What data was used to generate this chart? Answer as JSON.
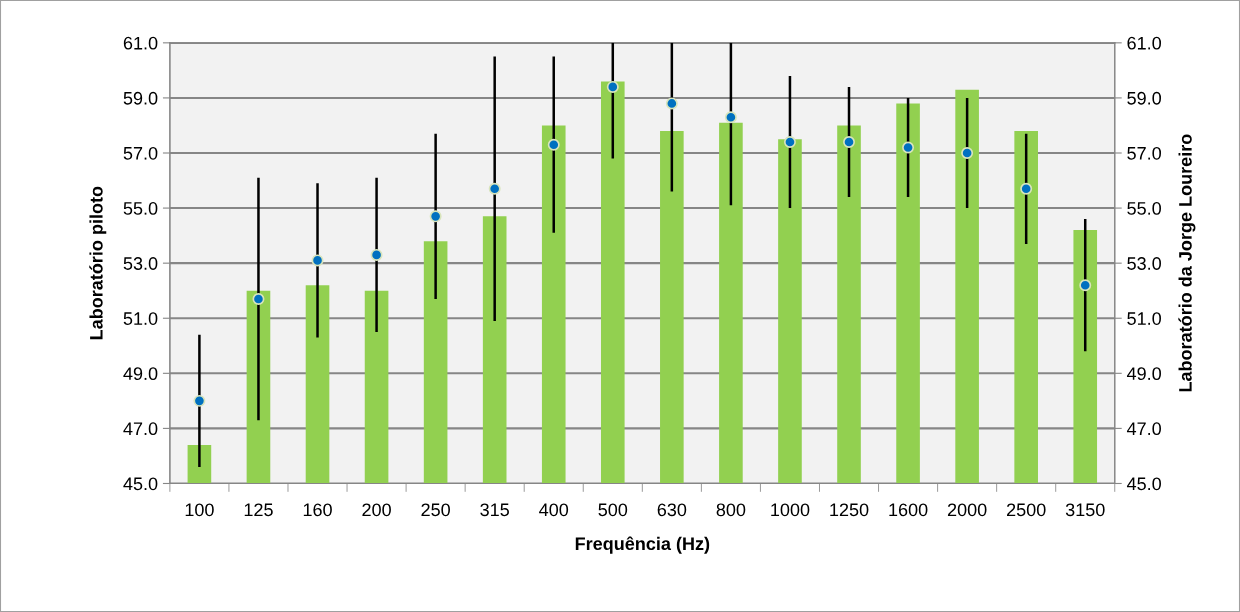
{
  "chart_data": {
    "type": "bar",
    "xlabel": "Frequência (Hz)",
    "ylabel": "Laboratório piloto",
    "y2label": "Laboratório da Jorge Loureiro",
    "categories": [
      "100",
      "125",
      "160",
      "200",
      "250",
      "315",
      "400",
      "500",
      "630",
      "800",
      "1000",
      "1250",
      "1600",
      "2000",
      "2500",
      "3150"
    ],
    "series": [
      {
        "color": "#92d050",
        "values": [
          46.4,
          52.0,
          52.2,
          52.0,
          53.8,
          54.7,
          58.0,
          59.6,
          57.8,
          58.1,
          57.5,
          58.0,
          58.8,
          59.3,
          57.8,
          54.2
        ]
      },
      {
        "type": "scatter",
        "axis": "y2",
        "color": "#0070c0",
        "marker": "circle",
        "values": [
          48.0,
          51.7,
          53.1,
          53.3,
          54.7,
          55.7,
          57.3,
          59.4,
          58.8,
          58.3,
          57.4,
          57.4,
          57.2,
          57.0,
          55.7,
          52.2
        ],
        "errors": [
          [
            45.6,
            50.4
          ],
          [
            47.3,
            56.1
          ],
          [
            50.3,
            55.9
          ],
          [
            50.5,
            56.1
          ],
          [
            51.7,
            57.7
          ],
          [
            50.9,
            60.5
          ],
          [
            54.1,
            60.5
          ],
          [
            56.8,
            61.0
          ],
          [
            55.6,
            61.0
          ],
          [
            55.1,
            61.0
          ],
          [
            55.0,
            59.8
          ],
          [
            55.4,
            59.4
          ],
          [
            55.4,
            59.0
          ],
          [
            55.0,
            59.0
          ],
          [
            53.7,
            57.7
          ],
          [
            49.8,
            54.6
          ]
        ]
      }
    ],
    "ylim": [
      45,
      61
    ],
    "yticks": [
      {
        "value": 45,
        "label": "45.0"
      },
      {
        "value": 47,
        "label": "47.0"
      },
      {
        "value": 49,
        "label": "49.0"
      },
      {
        "value": 51,
        "label": "51.0"
      },
      {
        "value": 53,
        "label": "53.0"
      },
      {
        "value": 55,
        "label": "55.0"
      },
      {
        "value": 57,
        "label": "57.0"
      },
      {
        "value": 59,
        "label": "59.0"
      },
      {
        "value": 61,
        "label": "61.0"
      }
    ],
    "y2lim": [
      45,
      61
    ],
    "y2ticks": [
      {
        "value": 45,
        "label": "45.0"
      },
      {
        "value": 47,
        "label": "47.0"
      },
      {
        "value": 49,
        "label": "49.0"
      },
      {
        "value": 51,
        "label": "51.0"
      },
      {
        "value": 53,
        "label": "53.0"
      },
      {
        "value": 55,
        "label": "55.0"
      },
      {
        "value": 57,
        "label": "57.0"
      },
      {
        "value": 59,
        "label": "59.0"
      },
      {
        "value": 61,
        "label": "61.0"
      }
    ],
    "grid": "y"
  }
}
